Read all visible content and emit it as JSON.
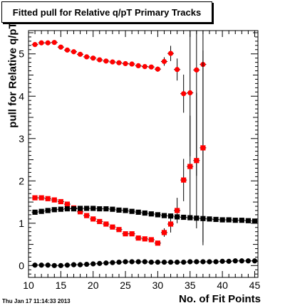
{
  "chart_data": {
    "type": "scatter",
    "title": "Fitted pull for Relative q/pT Primary Tracks",
    "xlabel": "No. of Fit Points",
    "ylabel": "pull for Relative q/pT",
    "footer": "Thu Jan 17 11:14:33 2013",
    "xlim": [
      10,
      45.5
    ],
    "ylim": [
      -0.28,
      5.55
    ],
    "xticks": [
      10,
      15,
      20,
      25,
      30,
      35,
      40,
      45
    ],
    "yticks": [
      0,
      1,
      2,
      3,
      4,
      5
    ],
    "grid": false,
    "legend": "none",
    "x": [
      11,
      12,
      13,
      14,
      15,
      16,
      17,
      18,
      19,
      20,
      21,
      22,
      23,
      24,
      25,
      26,
      27,
      28,
      29,
      30,
      31,
      32,
      33,
      34,
      35,
      36,
      37,
      38,
      39,
      40,
      41,
      42,
      43,
      44,
      45
    ],
    "series": [
      {
        "marker": "circle",
        "color": "#ff0000",
        "values": [
          5.22,
          5.26,
          5.26,
          5.27,
          5.16,
          5.09,
          5.05,
          4.99,
          4.93,
          4.9,
          4.86,
          4.83,
          4.81,
          4.79,
          4.77,
          4.76,
          4.72,
          4.7,
          4.69,
          4.64,
          4.82,
          5.01,
          4.63,
          4.06,
          4.08,
          4.62,
          4.75,
          null,
          null,
          null,
          null,
          null,
          null,
          null,
          null
        ],
        "errors": [
          0.02,
          0.02,
          0.02,
          0.02,
          0.02,
          0.02,
          0.02,
          0.02,
          0.02,
          0.02,
          0.02,
          0.02,
          0.02,
          0.02,
          0.02,
          0.02,
          0.03,
          0.03,
          0.04,
          0.06,
          0.1,
          0.18,
          0.26,
          0.45,
          1.5,
          2.5,
          4.2,
          null,
          null,
          null,
          null,
          null,
          null,
          null,
          null
        ]
      },
      {
        "marker": "square",
        "color": "#ff0000",
        "values": [
          1.6,
          1.6,
          1.58,
          1.55,
          1.51,
          1.45,
          1.36,
          1.27,
          1.18,
          1.1,
          1.04,
          0.98,
          0.91,
          0.85,
          0.75,
          0.75,
          0.65,
          0.63,
          0.61,
          0.53,
          0.78,
          0.98,
          1.3,
          2.02,
          2.34,
          2.48,
          2.78,
          null,
          null,
          null,
          null,
          null,
          null,
          null,
          null
        ],
        "errors": [
          0.02,
          0.02,
          0.02,
          0.02,
          0.02,
          0.02,
          0.02,
          0.02,
          0.02,
          0.02,
          0.02,
          0.02,
          0.02,
          0.02,
          0.02,
          0.02,
          0.02,
          0.03,
          0.03,
          0.05,
          0.1,
          0.2,
          0.3,
          0.5,
          1.2,
          1.6,
          2.3,
          null,
          null,
          null,
          null,
          null,
          null,
          null,
          null
        ]
      },
      {
        "marker": "square",
        "color": "#000000",
        "values": [
          1.26,
          1.28,
          1.3,
          1.32,
          1.33,
          1.34,
          1.34,
          1.35,
          1.35,
          1.35,
          1.34,
          1.34,
          1.33,
          1.31,
          1.3,
          1.28,
          1.26,
          1.24,
          1.22,
          1.2,
          1.18,
          1.17,
          1.15,
          1.14,
          1.13,
          1.12,
          1.11,
          1.1,
          1.09,
          1.08,
          1.08,
          1.07,
          1.07,
          1.06,
          1.05
        ],
        "errors": [
          0.01,
          0.01,
          0.01,
          0.01,
          0.01,
          0.01,
          0.01,
          0.01,
          0.01,
          0.01,
          0.01,
          0.01,
          0.01,
          0.01,
          0.01,
          0.01,
          0.01,
          0.01,
          0.01,
          0.01,
          0.01,
          0.01,
          0.01,
          0.01,
          0.01,
          0.01,
          0.01,
          0.01,
          0.01,
          0.01,
          0.01,
          0.01,
          0.01,
          0.01,
          0.01
        ]
      },
      {
        "marker": "circle",
        "color": "#000000",
        "values": [
          0.01,
          0.01,
          0.01,
          0.0,
          0.0,
          0.01,
          0.02,
          0.02,
          0.03,
          0.04,
          0.05,
          0.06,
          0.07,
          0.08,
          0.09,
          0.09,
          0.09,
          0.09,
          0.08,
          0.08,
          0.08,
          0.08,
          0.08,
          0.08,
          0.09,
          0.09,
          0.09,
          0.09,
          0.09,
          0.1,
          0.1,
          0.11,
          0.11,
          0.11,
          0.11
        ],
        "errors": [
          0.01,
          0.01,
          0.01,
          0.01,
          0.01,
          0.01,
          0.01,
          0.01,
          0.01,
          0.01,
          0.01,
          0.01,
          0.01,
          0.01,
          0.01,
          0.01,
          0.01,
          0.01,
          0.01,
          0.01,
          0.01,
          0.01,
          0.01,
          0.01,
          0.01,
          0.01,
          0.01,
          0.01,
          0.01,
          0.01,
          0.01,
          0.01,
          0.01,
          0.01,
          0.01
        ]
      }
    ]
  }
}
